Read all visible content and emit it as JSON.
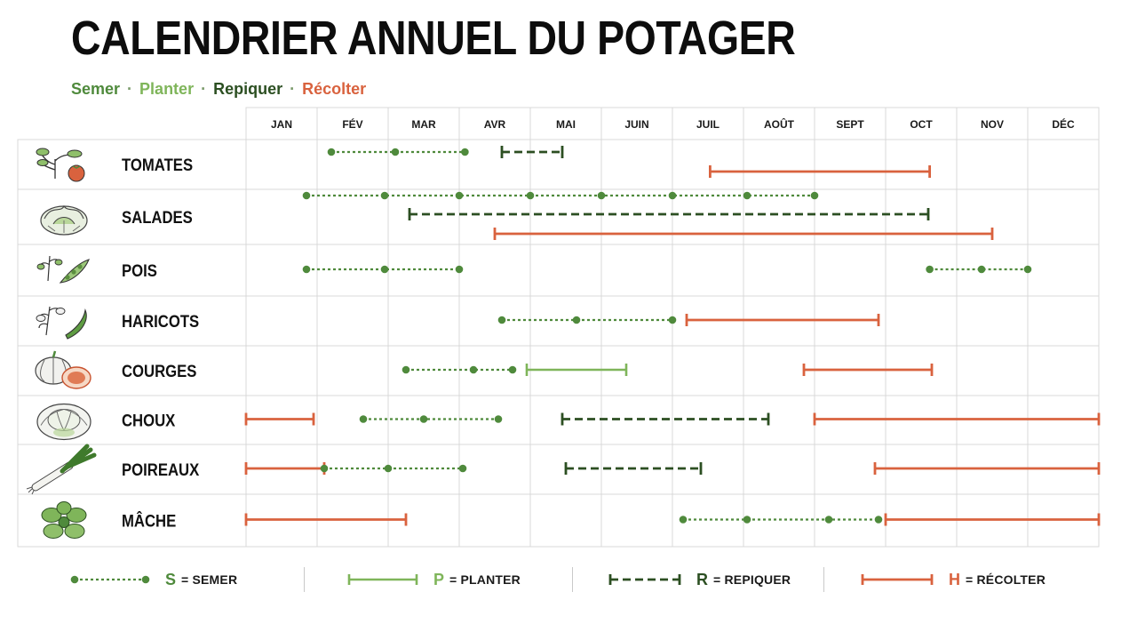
{
  "title": "CALENDRIER ANNUEL DU POTAGER",
  "subtitle": {
    "semer": "Semer",
    "planter": "Planter",
    "repiquer": "Repiquer",
    "recolter": "Récolter",
    "separator": "·"
  },
  "colors": {
    "semer": "#4f8a3c",
    "planter": "#7fb55a",
    "repiquer": "#2c4f22",
    "recolter": "#d9623e",
    "grid": "#d9d9d9"
  },
  "chart_data": {
    "type": "gantt",
    "x_unit": "month",
    "xlim": [
      0,
      12
    ],
    "months": [
      "JAN",
      "FÉV",
      "MAR",
      "AVR",
      "MAI",
      "JUIN",
      "JUIL",
      "AOÛT",
      "SEPT",
      "OCT",
      "NOV",
      "DÉC"
    ],
    "crops": [
      {
        "name": "TOMATES",
        "icon": "tomato-icon",
        "tracks": [
          [
            {
              "kind": "semer",
              "points": [
                1.2,
                2.1,
                3.08
              ]
            },
            {
              "kind": "repiquer",
              "start": 3.6,
              "end": 4.45
            }
          ],
          [
            {
              "kind": "recolter",
              "start": 6.53,
              "end": 9.62
            }
          ]
        ]
      },
      {
        "name": "SALADES",
        "icon": "lettuce-icon",
        "tracks": [
          [
            {
              "kind": "semer",
              "points": [
                0.85,
                1.95,
                3.0,
                4.0,
                5.0,
                6.0,
                7.05,
                8.0
              ]
            }
          ],
          [
            {
              "kind": "repiquer",
              "start": 2.3,
              "end": 9.6
            }
          ],
          [
            {
              "kind": "recolter",
              "start": 3.5,
              "end": 10.5
            }
          ]
        ]
      },
      {
        "name": "POIS",
        "icon": "pea-icon",
        "tracks": [
          [
            {
              "kind": "semer",
              "points": [
                0.85,
                1.95,
                3.0
              ]
            },
            {
              "kind": "semer",
              "points": [
                9.62,
                10.35,
                11.0
              ]
            }
          ]
        ]
      },
      {
        "name": "HARICOTS",
        "icon": "bean-icon",
        "tracks": [
          [
            {
              "kind": "semer",
              "points": [
                3.6,
                4.65,
                6.0
              ]
            },
            {
              "kind": "recolter",
              "start": 6.2,
              "end": 8.9
            }
          ]
        ]
      },
      {
        "name": "COURGES",
        "icon": "squash-icon",
        "tracks": [
          [
            {
              "kind": "semer",
              "points": [
                2.25,
                3.2,
                3.75
              ]
            },
            {
              "kind": "planter",
              "start": 3.95,
              "end": 5.35
            },
            {
              "kind": "recolter",
              "start": 7.85,
              "end": 9.65
            }
          ]
        ]
      },
      {
        "name": "CHOUX",
        "icon": "cabbage-icon",
        "tracks": [
          [
            {
              "kind": "recolter",
              "start": 0.0,
              "end": 0.95
            },
            {
              "kind": "semer",
              "points": [
                1.65,
                2.5,
                3.55
              ]
            },
            {
              "kind": "repiquer",
              "start": 4.45,
              "end": 7.35
            },
            {
              "kind": "recolter",
              "start": 8.0,
              "end": 12.0
            }
          ]
        ]
      },
      {
        "name": "POIREAUX",
        "icon": "leek-icon",
        "tracks": [
          [
            {
              "kind": "recolter",
              "start": 0.0,
              "end": 1.1
            },
            {
              "kind": "semer",
              "points": [
                1.1,
                2.0,
                3.05
              ]
            },
            {
              "kind": "repiquer",
              "start": 4.5,
              "end": 6.4
            },
            {
              "kind": "recolter",
              "start": 8.85,
              "end": 12.0
            }
          ]
        ]
      },
      {
        "name": "MÂCHE",
        "icon": "lambs-lettuce-icon",
        "tracks": [
          [
            {
              "kind": "recolter",
              "start": 0.0,
              "end": 2.25
            },
            {
              "kind": "semer",
              "points": [
                6.15,
                7.05,
                8.2,
                8.9
              ]
            },
            {
              "kind": "recolter",
              "start": 9.0,
              "end": 12.0
            }
          ]
        ]
      }
    ]
  },
  "legend": [
    {
      "kind": "semer",
      "code": "S",
      "label": "= SEMER"
    },
    {
      "kind": "planter",
      "code": "P",
      "label": "= PLANTER"
    },
    {
      "kind": "repiquer",
      "code": "R",
      "label": "= REPIQUER"
    },
    {
      "kind": "recolter",
      "code": "H",
      "label": "= RÉCOLTER"
    }
  ]
}
